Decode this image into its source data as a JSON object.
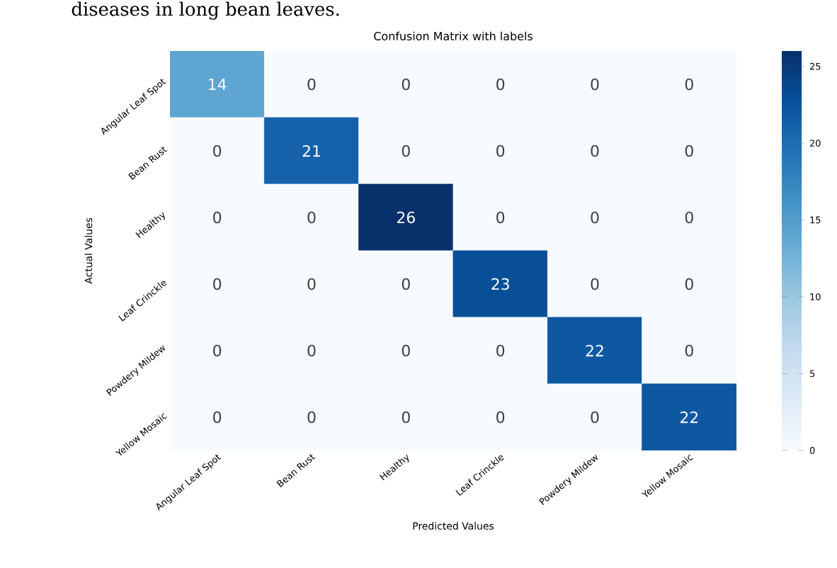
{
  "chart_data": {
    "type": "heatmap",
    "title": "Confusion Matrix with labels",
    "xlabel": "Predicted Values",
    "ylabel": "Actual Values",
    "categories": [
      "Angular Leaf Spot",
      "Bean Rust",
      "Healthy",
      "Leaf Crinckle",
      "Powdery Mildew",
      "Yellow Mosaic"
    ],
    "y_categories": [
      "Angular Leaf Spot",
      "Bean Rust",
      "Healthy",
      "Leaf Crinckle",
      "Powdery Mildew",
      "Yellow Mosaic"
    ],
    "cells": [
      [
        14,
        0,
        0,
        0,
        0,
        0
      ],
      [
        0,
        21,
        0,
        0,
        0,
        0
      ],
      [
        0,
        0,
        26,
        0,
        0,
        0
      ],
      [
        0,
        0,
        0,
        23,
        0,
        0
      ],
      [
        0,
        0,
        0,
        0,
        22,
        0
      ],
      [
        0,
        0,
        0,
        0,
        0,
        22
      ]
    ],
    "data_labels": true,
    "clim": [
      0,
      26
    ],
    "cticks": [
      0,
      5,
      10,
      15,
      20,
      25
    ],
    "annotations": [
      "diseases in long bean leaves."
    ]
  }
}
